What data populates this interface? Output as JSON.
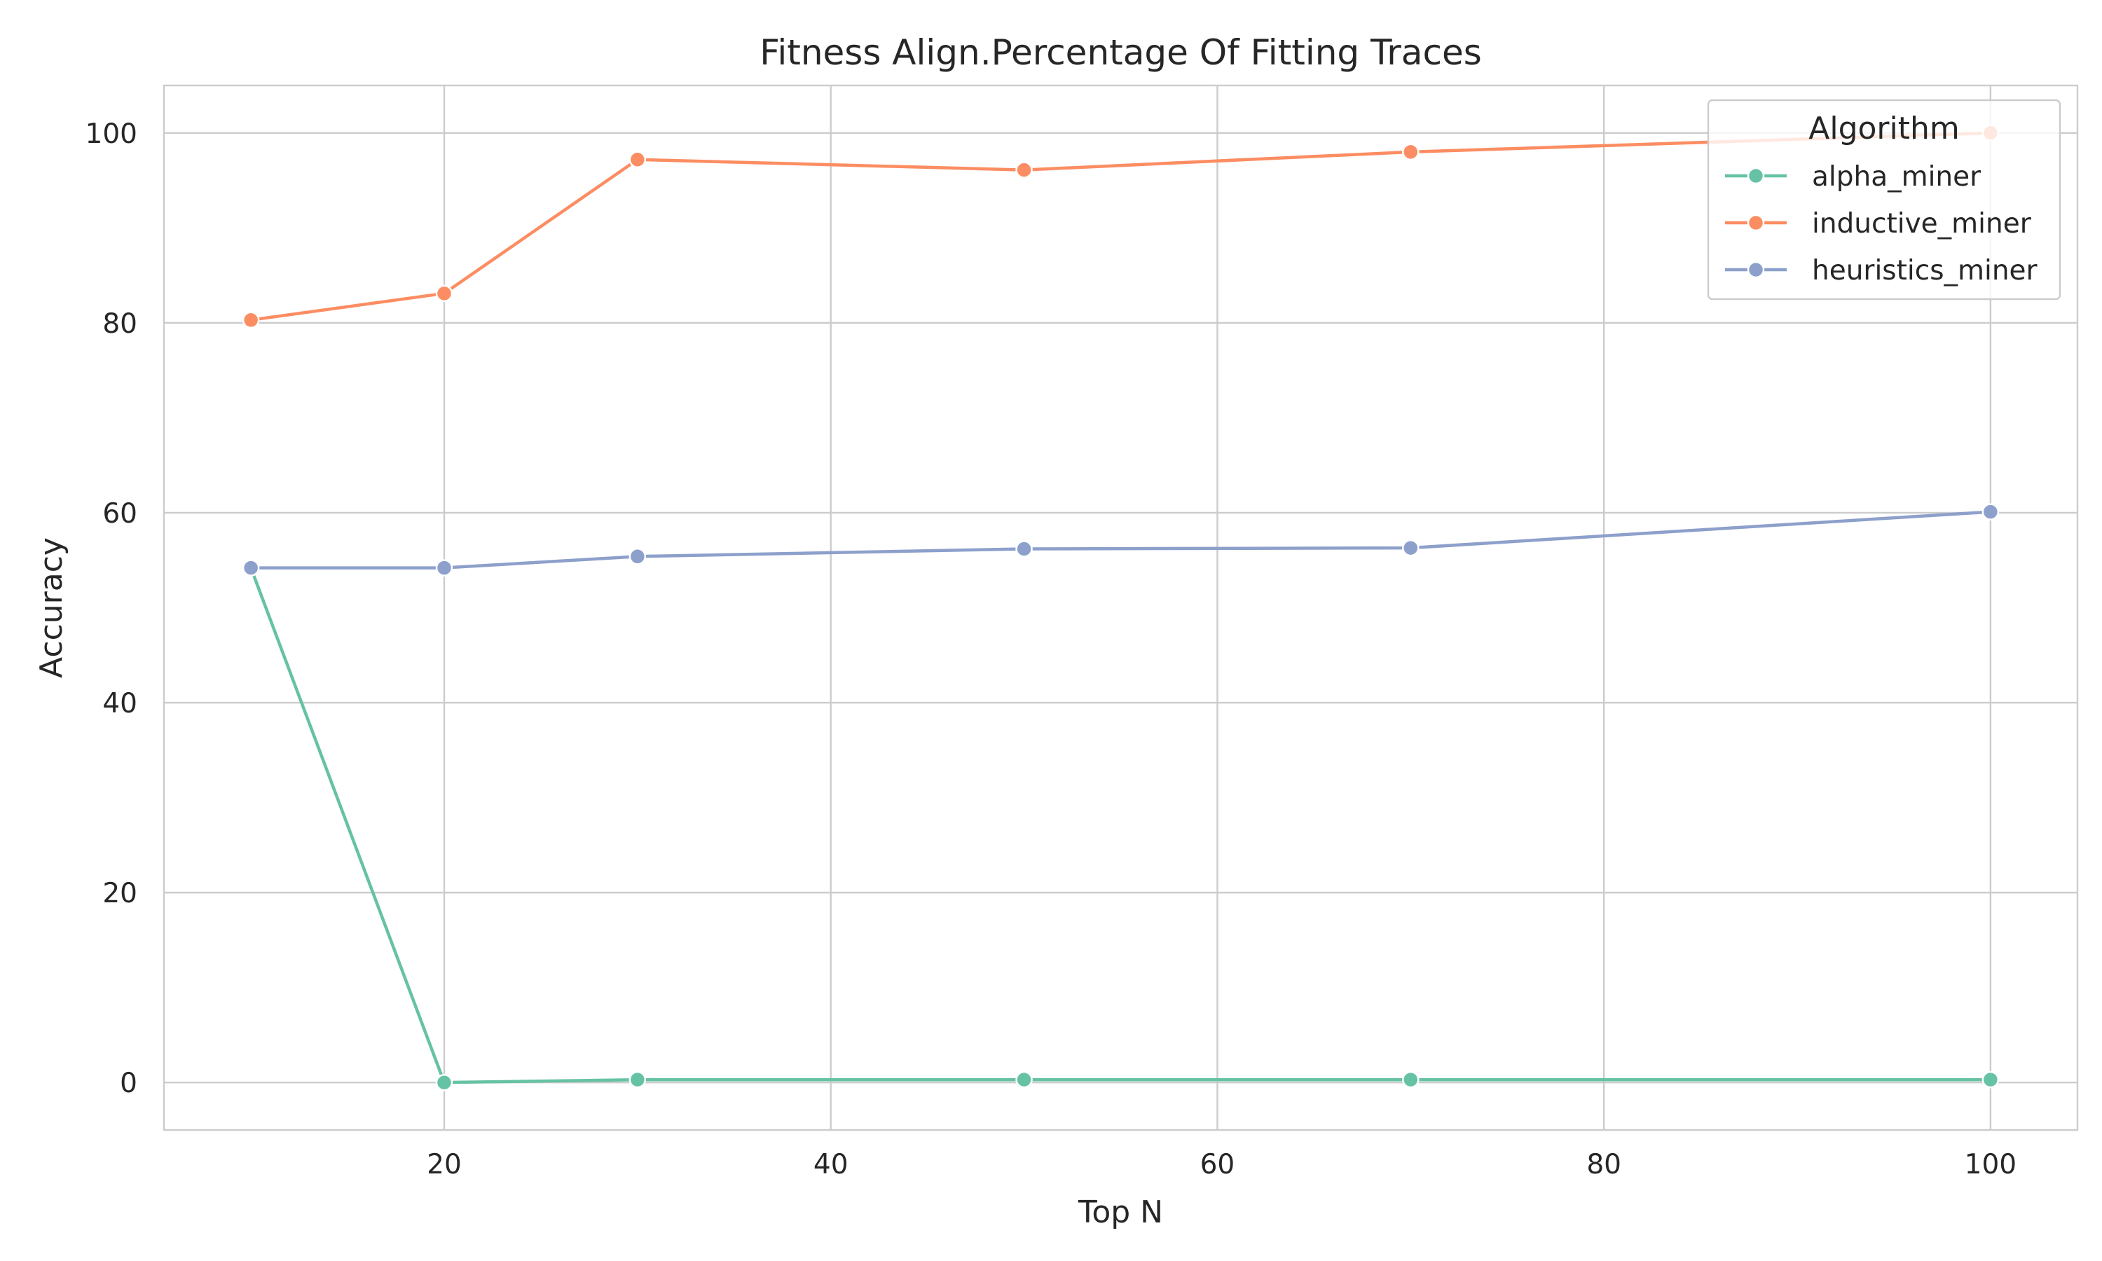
{
  "chart_data": {
    "type": "line",
    "title": "Fitness Align.Percentage Of Fitting Traces",
    "xlabel": "Top N",
    "ylabel": "Accuracy",
    "x": [
      10,
      20,
      30,
      50,
      70,
      100
    ],
    "xlim": [
      5.5,
      104.5
    ],
    "ylim": [
      -5,
      105
    ],
    "xticks": [
      20,
      40,
      60,
      80,
      100
    ],
    "yticks": [
      0,
      20,
      40,
      60,
      80,
      100
    ],
    "grid": true,
    "legend": {
      "title": "Algorithm",
      "placement": "top-right"
    },
    "series": [
      {
        "name": "alpha_miner",
        "color": "#66c2a5",
        "values": [
          54.2,
          0.0,
          0.3,
          0.3,
          0.3,
          0.3
        ]
      },
      {
        "name": "inductive_miner",
        "color": "#fc8d62",
        "values": [
          80.3,
          83.1,
          97.2,
          96.1,
          98.0,
          100.0
        ]
      },
      {
        "name": "heuristics_miner",
        "color": "#8da0cb",
        "values": [
          54.2,
          54.2,
          55.4,
          56.2,
          56.3,
          60.1
        ]
      }
    ]
  }
}
